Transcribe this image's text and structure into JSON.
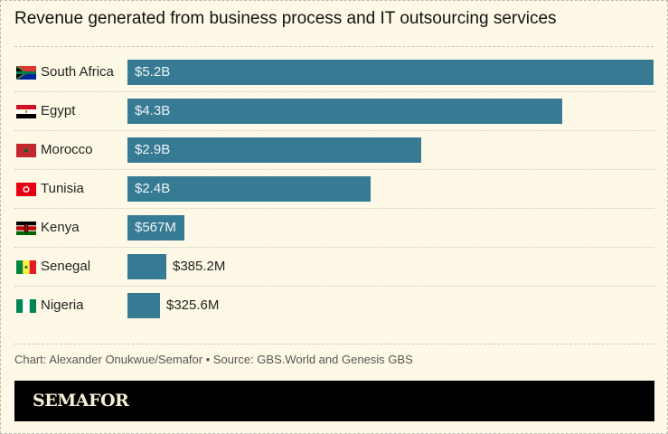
{
  "title": "Revenue generated from business process and IT outsourcing services",
  "chart_data": {
    "type": "bar",
    "orientation": "horizontal",
    "title": "Revenue generated from business process and IT outsourcing services",
    "unit": "USD millions",
    "categories": [
      "South Africa",
      "Egypt",
      "Morocco",
      "Tunisia",
      "Kenya",
      "Senegal",
      "Nigeria"
    ],
    "values": [
      5200,
      4300,
      2900,
      2400,
      567,
      385.2,
      325.6
    ],
    "labels": [
      "$5.2B",
      "$4.3B",
      "$2.9B",
      "$2.4B",
      "$567M",
      "$385.2M",
      "$325.6M"
    ],
    "flag_icons": [
      "flag-south-africa",
      "flag-egypt",
      "flag-morocco",
      "flag-tunisia",
      "flag-kenya",
      "flag-senegal",
      "flag-nigeria"
    ],
    "bar_color": "#367a93",
    "grid": false
  },
  "source": "Chart: Alexander Onukwue/Semafor • Source: GBS.World and Genesis GBS",
  "logo": "SEMAFOR"
}
